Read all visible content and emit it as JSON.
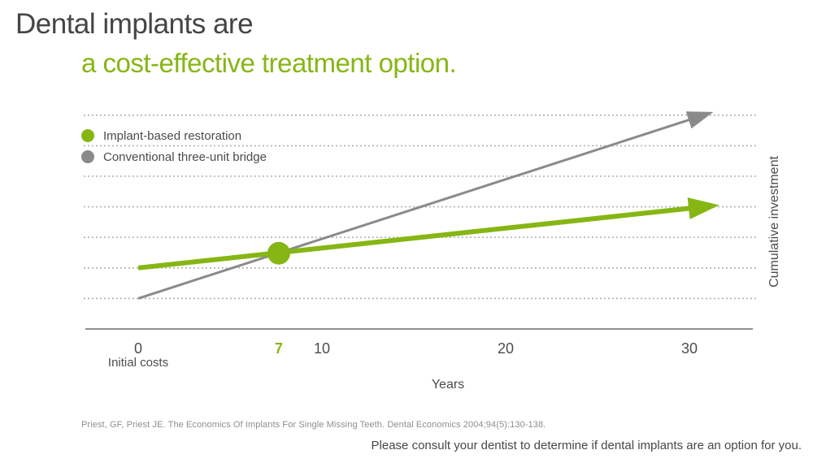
{
  "page": {
    "title_line1": "Dental implants are",
    "title_line2": "a cost-effective treatment option.",
    "footnote": "Priest, GF, Priest JE. The Economics Of Implants For Single Missing Teeth. Dental Economics 2004;94(5):130-138.",
    "disclaimer": "Please consult your dentist to determine if dental implants are an option for you."
  },
  "colors": {
    "title_text": "#454545",
    "accent_green": "#86b614",
    "line_gray": "#8a8a8a",
    "gridline": "#a8a8a8",
    "axis": "#8f8f8f",
    "body_text": "#4b4b4b",
    "footnote_text": "#8e8e8e"
  },
  "legend": {
    "items": [
      {
        "label": "Implant-based restoration",
        "color": "#86b614",
        "marker": "circle"
      },
      {
        "label": "Conventional three-unit bridge",
        "color": "#8a8a8a",
        "marker": "circle"
      }
    ]
  },
  "chart_data": {
    "type": "line",
    "title": "Dental implants are a cost-effective treatment option.",
    "xlabel": "Years",
    "ylabel": "Cumulative investment",
    "x_ticks": [
      {
        "label": "0",
        "year": 0,
        "highlight": false,
        "sublabel": "Initial costs"
      },
      {
        "label": "7",
        "year": 7.65,
        "highlight": true
      },
      {
        "label": "10",
        "year": 10,
        "highlight": false
      },
      {
        "label": "20",
        "year": 20,
        "highlight": false
      },
      {
        "label": "30",
        "year": 30,
        "highlight": false
      }
    ],
    "xlim": [
      -3,
      34
    ],
    "y_axis_note": "relative scale, one dotted gridline = 1 unit, no numeric y labels shown",
    "ylim_units": [
      0,
      7.3
    ],
    "grid": "horizontal-dotted",
    "gridline_units": [
      1,
      2,
      3,
      4,
      5,
      6,
      7
    ],
    "series": [
      {
        "name": "Conventional three-unit bridge",
        "color": "#8a8a8a",
        "width": 3,
        "arrow": true,
        "points": [
          {
            "year": 0,
            "units": 1.0
          },
          {
            "year": 30,
            "units": 6.85
          }
        ]
      },
      {
        "name": "Implant-based restoration",
        "color": "#86b614",
        "width": 6,
        "arrow": true,
        "points": [
          {
            "year": 0,
            "units": 2.0
          },
          {
            "year": 30,
            "units": 3.95
          }
        ]
      }
    ],
    "marker_point": {
      "year": 7.65,
      "units": 2.48,
      "color": "#86b614",
      "radius": 14,
      "meaning": "lines cross near the year-7 tick (break-even)"
    }
  }
}
